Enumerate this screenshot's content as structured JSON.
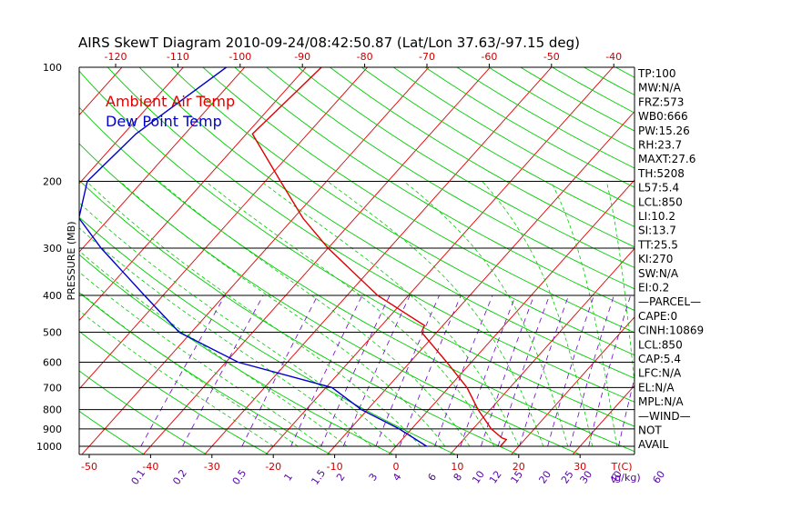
{
  "chart_data": {
    "type": "line",
    "title": "AIRS SkewT Diagram 2010-09-24/08:42:50.87 (Lat/Lon 37.63/-97.15 deg)",
    "ylabel": "PRESSURE (MB)",
    "y_scale": "log",
    "ylim": [
      1000,
      100
    ],
    "y_ticks": [
      100,
      200,
      300,
      400,
      500,
      600,
      700,
      800,
      900,
      1000
    ],
    "isobars_drawn": [
      200,
      300,
      400,
      500,
      600,
      700,
      800,
      900,
      1000
    ],
    "top_temp_ticks": [
      -120,
      -110,
      -100,
      -90,
      -80,
      -70,
      -60,
      -50,
      -40
    ],
    "bottom_temp_ticks": [
      -50,
      -40,
      -30,
      -20,
      -10,
      0,
      10,
      20,
      30
    ],
    "bottom_axis_unit": "T(C)",
    "mixing_ratio_ticks": [
      "0.1",
      "0.2",
      "0.5",
      "1",
      "1.5",
      "2",
      "3",
      "4",
      "6",
      "8",
      "10",
      "12",
      "15",
      "20",
      "25",
      "30",
      "40",
      "60"
    ],
    "mixing_ratio_unit": "(g/kg)",
    "legend": [
      {
        "label": "Ambient Air Temp",
        "color": "#e00000"
      },
      {
        "label": "Dew Point Temp",
        "color": "#0000cc"
      }
    ],
    "series": [
      {
        "name": "Ambient Air Temp",
        "color": "#e00000",
        "points": [
          {
            "p": 100,
            "t": -67.5
          },
          {
            "p": 150,
            "t": -69
          },
          {
            "p": 200,
            "t": -57.5
          },
          {
            "p": 250,
            "t": -48.5
          },
          {
            "p": 300,
            "t": -40
          },
          {
            "p": 400,
            "t": -25
          },
          {
            "p": 480,
            "t": -13
          },
          {
            "p": 500,
            "t": -12.5
          },
          {
            "p": 600,
            "t": -4
          },
          {
            "p": 700,
            "t": 3
          },
          {
            "p": 800,
            "t": 8
          },
          {
            "p": 900,
            "t": 13
          },
          {
            "p": 950,
            "t": 16
          },
          {
            "p": 960,
            "t": 17
          },
          {
            "p": 1000,
            "t": 17
          }
        ]
      },
      {
        "name": "Dew Point Temp",
        "color": "#0000cc",
        "points": [
          {
            "p": 100,
            "t": -83
          },
          {
            "p": 150,
            "t": -88
          },
          {
            "p": 200,
            "t": -89
          },
          {
            "p": 250,
            "t": -85
          },
          {
            "p": 300,
            "t": -77
          },
          {
            "p": 400,
            "t": -63
          },
          {
            "p": 500,
            "t": -52
          },
          {
            "p": 600,
            "t": -38
          },
          {
            "p": 700,
            "t": -19
          },
          {
            "p": 800,
            "t": -11
          },
          {
            "p": 900,
            "t": -2
          },
          {
            "p": 1000,
            "t": 5
          }
        ]
      }
    ],
    "stats": [
      "TP:100",
      "MW:N/A",
      "FRZ:573",
      "WB0:666",
      "PW:15.26",
      "RH:23.7",
      "MAXT:27.6",
      "TH:5208",
      "L57:5.4",
      "LCL:850",
      "LI:10.2",
      "SI:13.7",
      "TT:25.5",
      "KI:270",
      "SW:N/A",
      "EI:0.2",
      "—PARCEL—",
      "CAPE:0",
      "CINH:10869",
      "LCL:850",
      "CAP:5.4",
      "LFC:N/A",
      "EL:N/A",
      "MPL:N/A",
      "—WIND—",
      "NOT",
      "AVAIL"
    ],
    "colors": {
      "isotherm": "#e00000",
      "dry_adiabat": "#00cc00",
      "moist_adiabat": "#00cc00",
      "mixing_ratio": "#6a00cc",
      "isobar": "#000000",
      "axis_text": "#000000",
      "temp_tick_text": "#cc0000",
      "mixing_tick_text": "#5500aa"
    }
  }
}
